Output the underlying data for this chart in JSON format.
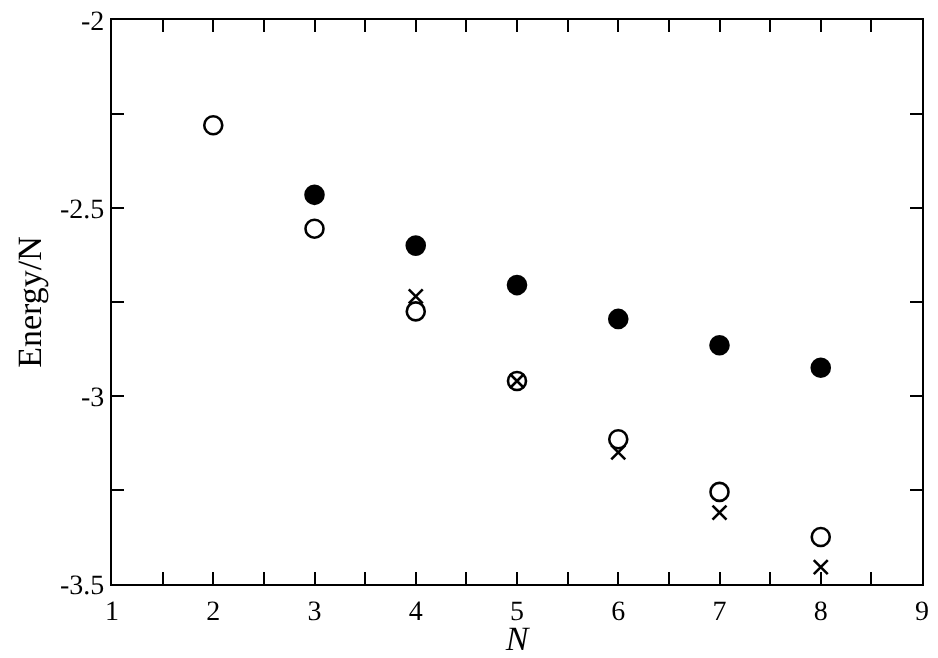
{
  "chart_data": {
    "type": "scatter",
    "xlabel": "N",
    "ylabel": "Energy/N",
    "x": [
      2,
      3,
      4,
      5,
      6,
      7,
      8
    ],
    "series": [
      {
        "color": "#000000",
        "marker": "circle-open",
        "values": [
          -2.28,
          -2.555,
          -2.775,
          -2.96,
          -3.115,
          -3.255,
          -3.375
        ]
      },
      {
        "color": "#000000",
        "marker": "circle",
        "values": [
          null,
          -2.465,
          -2.6,
          -2.705,
          -2.795,
          -2.865,
          -2.925
        ]
      },
      {
        "color": "#000000",
        "marker": "cross",
        "values": [
          null,
          null,
          -2.735,
          -2.96,
          -3.15,
          -3.31,
          -3.455
        ]
      }
    ],
    "xlim": [
      1,
      9
    ],
    "xticks": [
      1,
      {
        "value": 1.5,
        "label": null
      },
      2,
      {
        "value": 2.5,
        "label": null
      },
      3,
      {
        "value": 3.5,
        "label": null
      },
      4,
      {
        "value": 4.5,
        "label": null
      },
      5,
      {
        "value": 5.5,
        "label": null
      },
      6,
      {
        "value": 6.5,
        "label": null
      },
      7,
      {
        "value": 7.5,
        "label": null
      },
      8,
      {
        "value": 8.5,
        "label": null
      },
      9
    ],
    "ylim": [
      -3.5,
      -2
    ],
    "yticks": [
      -3.5,
      {
        "value": -3.25,
        "label": null
      },
      -3,
      {
        "value": -2.75,
        "label": null
      },
      -2.5,
      {
        "value": -2.25,
        "label": null
      },
      -2
    ]
  }
}
